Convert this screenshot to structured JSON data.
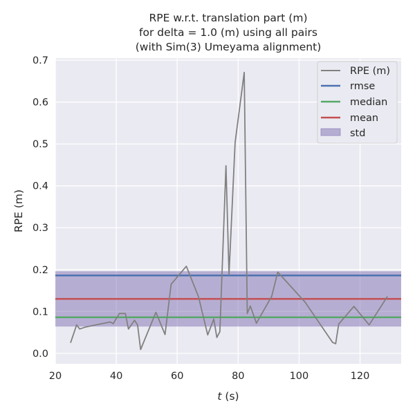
{
  "chart_data": {
    "type": "line",
    "title_lines": [
      "RPE w.r.t. translation part (m)",
      "for delta = 1.0 (m) using all pairs",
      "(with Sim(3) Umeyama alignment)"
    ],
    "xlabel_italic": "t",
    "xlabel_rest": " (s)",
    "ylabel": "RPE (m)",
    "xlim": [
      20,
      133.5
    ],
    "ylim": [
      -0.025,
      0.705
    ],
    "xticks": [
      20,
      40,
      60,
      80,
      100,
      120
    ],
    "yticks": [
      "0.0",
      "0.1",
      "0.2",
      "0.3",
      "0.4",
      "0.5",
      "0.6",
      "0.7"
    ],
    "grid": true,
    "legend_position": "top-right",
    "series": [
      {
        "name": "RPE (m)",
        "color": "#808080",
        "x": [
          25,
          27,
          28,
          30,
          38,
          39,
          41,
          43,
          44,
          46,
          47,
          48,
          53,
          56,
          58,
          63,
          67,
          70,
          72,
          73,
          74,
          76,
          77,
          79,
          82,
          83,
          84,
          86,
          91,
          93,
          102,
          111,
          112,
          113,
          118,
          123,
          129
        ],
        "y": [
          0.025,
          0.068,
          0.058,
          0.063,
          0.075,
          0.071,
          0.095,
          0.095,
          0.058,
          0.079,
          0.068,
          0.009,
          0.098,
          0.045,
          0.165,
          0.208,
          0.135,
          0.044,
          0.082,
          0.038,
          0.052,
          0.448,
          0.188,
          0.503,
          0.671,
          0.095,
          0.113,
          0.072,
          0.136,
          0.194,
          0.122,
          0.026,
          0.023,
          0.07,
          0.112,
          0.068,
          0.136
        ]
      }
    ],
    "stats": [
      {
        "name": "rmse",
        "value": 0.186,
        "color": "#4c72b0"
      },
      {
        "name": "median",
        "value": 0.086,
        "color": "#55a868"
      },
      {
        "name": "mean",
        "value": 0.13,
        "color": "#c44e52"
      }
    ],
    "std_band": {
      "name": "std",
      "low": 0.064,
      "high": 0.196,
      "color": "#8172b2"
    }
  }
}
